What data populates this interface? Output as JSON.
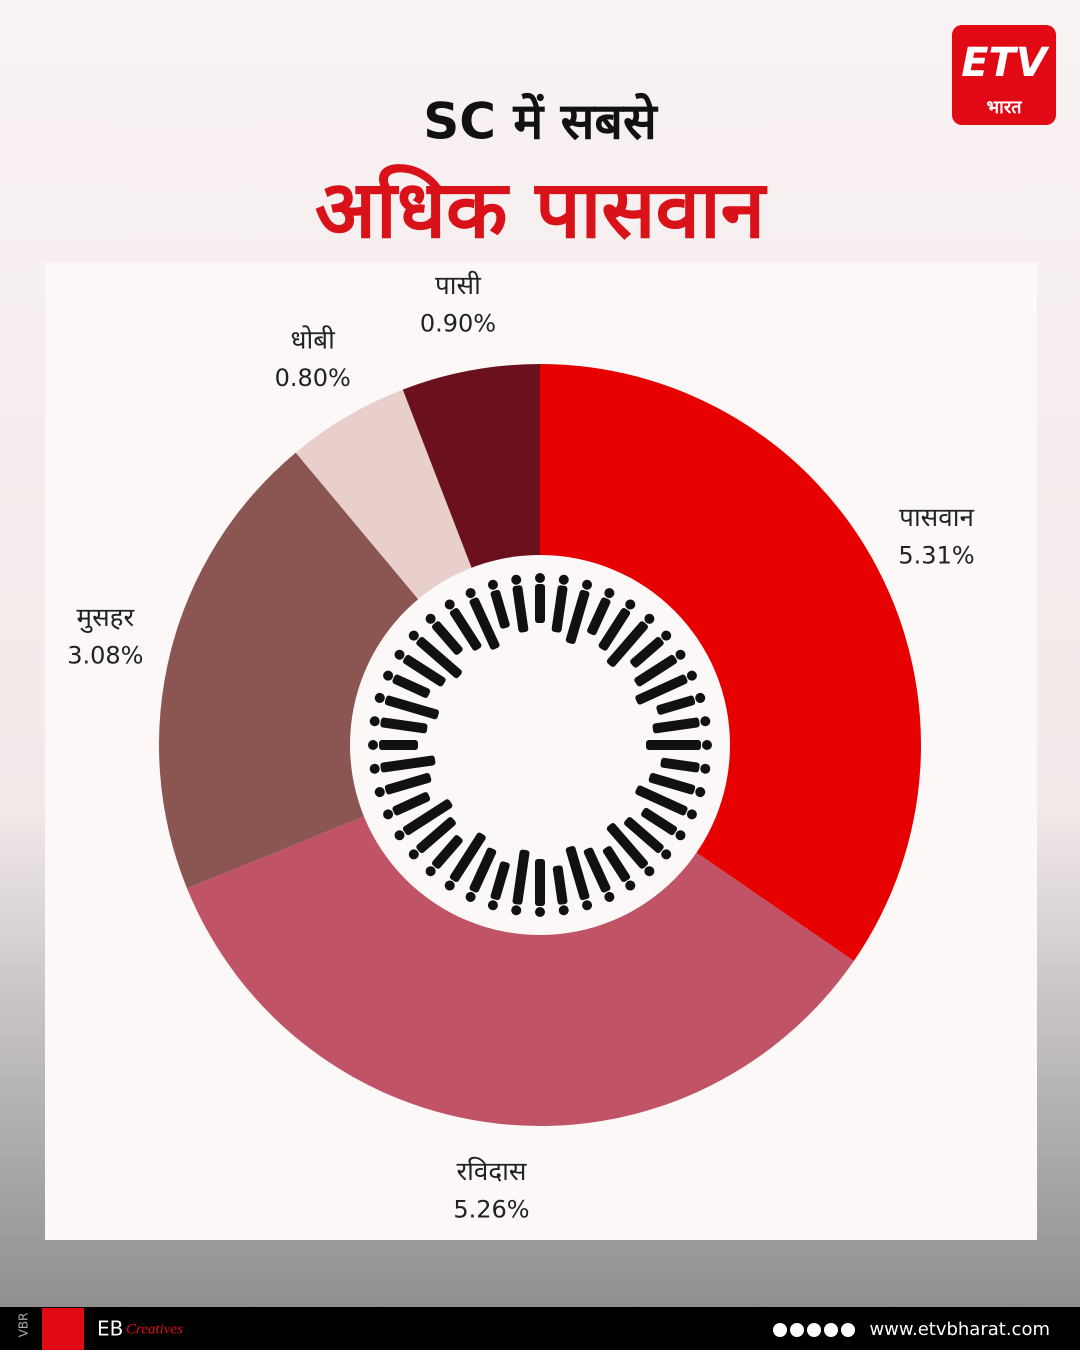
{
  "chart_data": {
    "type": "donut",
    "title": "SC में सबसे",
    "subtitle": "अधिक पासवान",
    "categories": [
      "पासवान",
      "रविदास",
      "मुसहर",
      "धोबी",
      "पासी"
    ],
    "values": [
      5.31,
      5.26,
      3.08,
      0.8,
      0.9
    ],
    "value_labels": [
      "5.31%",
      "5.26%",
      "3.08%",
      "0.80%",
      "0.90%"
    ],
    "colors": [
      "#e60000",
      "#c05466",
      "#8b5552",
      "#e8cfcc",
      "#6b111e"
    ]
  },
  "branding": {
    "logo_text": "भारत",
    "side_text": "VBR",
    "footer_eb": "EB",
    "footer_creatives": "Creatives",
    "website": "www.etvbharat.com"
  }
}
